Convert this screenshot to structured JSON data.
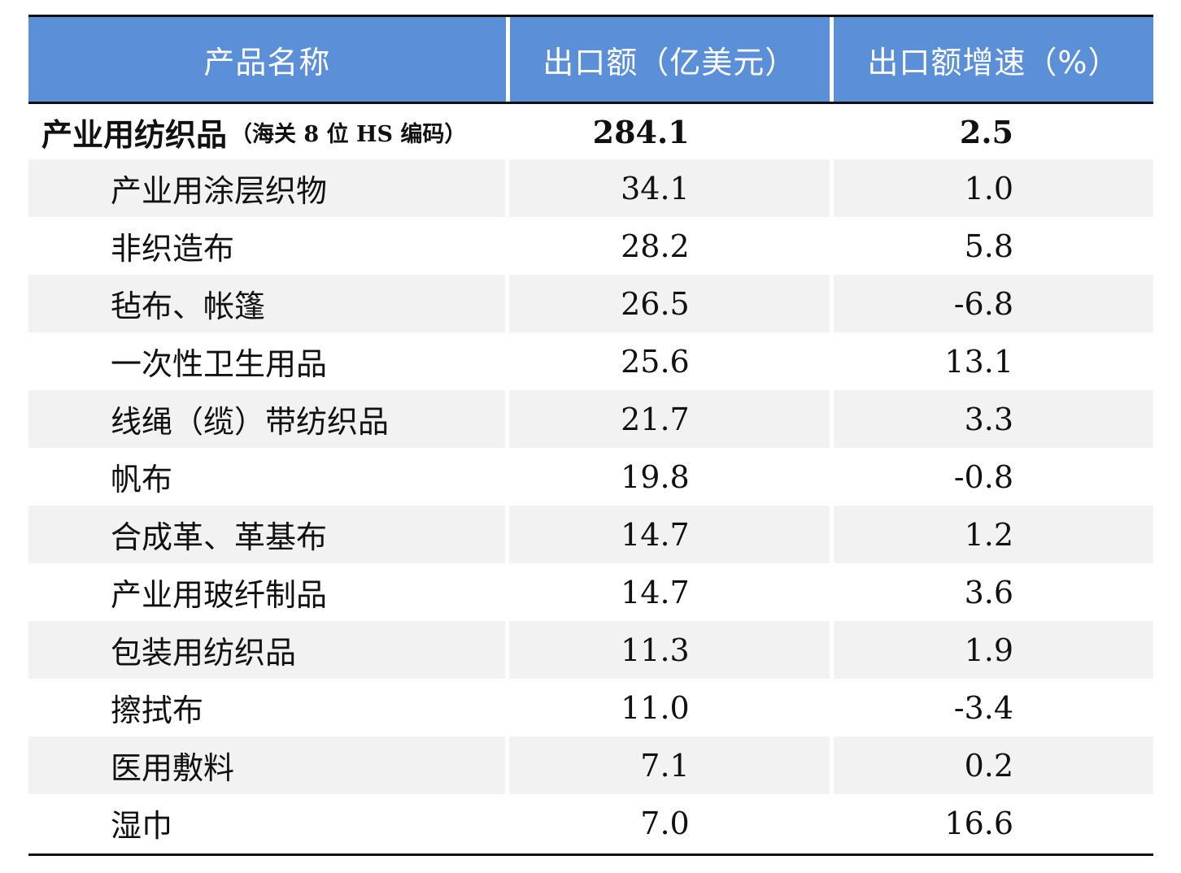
{
  "table": {
    "headers": [
      "产品名称",
      "出口额（亿美元）",
      "出口额增速（%）"
    ],
    "total": {
      "name": "产业用纺织品",
      "note": "（海关 8 位 HS 编码）",
      "value": "284.1",
      "growth": "2.5"
    },
    "rows": [
      {
        "name": "产业用涂层织物",
        "value": "34.1",
        "growth": "1.0"
      },
      {
        "name": "非织造布",
        "value": "28.2",
        "growth": "5.8"
      },
      {
        "name": "毡布、帐篷",
        "value": "26.5",
        "growth": "-6.8"
      },
      {
        "name": "一次性卫生用品",
        "value": "25.6",
        "growth": "13.1"
      },
      {
        "name": "线绳（缆）带纺织品",
        "value": "21.7",
        "growth": "3.3"
      },
      {
        "name": "帆布",
        "value": "19.8",
        "growth": "-0.8"
      },
      {
        "name": "合成革、革基布",
        "value": "14.7",
        "growth": "1.2"
      },
      {
        "name": "产业用玻纤制品",
        "value": "14.7",
        "growth": "3.6"
      },
      {
        "name": "包装用纺织品",
        "value": "11.3",
        "growth": "1.9"
      },
      {
        "name": "擦拭布",
        "value": "11.0",
        "growth": "-3.4"
      },
      {
        "name": "医用敷料",
        "value": "7.1",
        "growth": "0.2"
      },
      {
        "name": "湿巾",
        "value": "7.0",
        "growth": "16.6"
      }
    ]
  },
  "colors": {
    "header_bg": "#5b8fd8",
    "header_text": "#ffffff",
    "shaded_row": "#f2f2f2",
    "rule": "#111111"
  }
}
